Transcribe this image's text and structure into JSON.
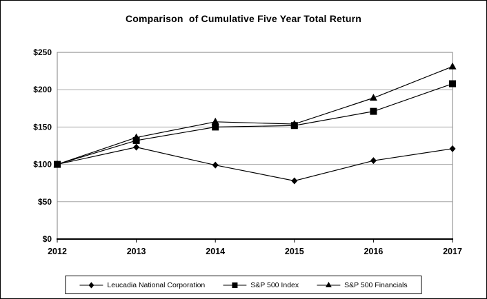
{
  "title": "Comparison  of Cumulative Five Year Total Return",
  "colors": {
    "background": "#ffffff",
    "text": "#000000",
    "line": "#000000",
    "marker": "#000000",
    "grid": "#a6a6a6",
    "plot_border": "#808080",
    "axis": "#000000",
    "legend_border": "#000000"
  },
  "chart_data": {
    "type": "line",
    "title": "Comparison of Cumulative Five Year Total Return",
    "categories": [
      "2012",
      "2013",
      "2014",
      "2015",
      "2016",
      "2017"
    ],
    "series": [
      {
        "name": "Leucadia National Corporation",
        "marker": "diamond",
        "values": [
          100,
          123,
          99,
          78,
          105,
          121
        ]
      },
      {
        "name": "S&P 500 Index",
        "marker": "square",
        "values": [
          100,
          132,
          150,
          152,
          171,
          208
        ]
      },
      {
        "name": "S&P 500 Financials",
        "marker": "triangle",
        "values": [
          100,
          136,
          157,
          154,
          189,
          231
        ]
      }
    ],
    "xlabel": "",
    "ylabel": "",
    "ylim": [
      0,
      250
    ],
    "yticks": [
      0,
      50,
      100,
      150,
      200,
      250
    ],
    "ytick_labels": [
      "$0",
      "$50",
      "$100",
      "$150",
      "$200",
      "$250"
    ],
    "grid": true,
    "legend_position": "bottom"
  }
}
